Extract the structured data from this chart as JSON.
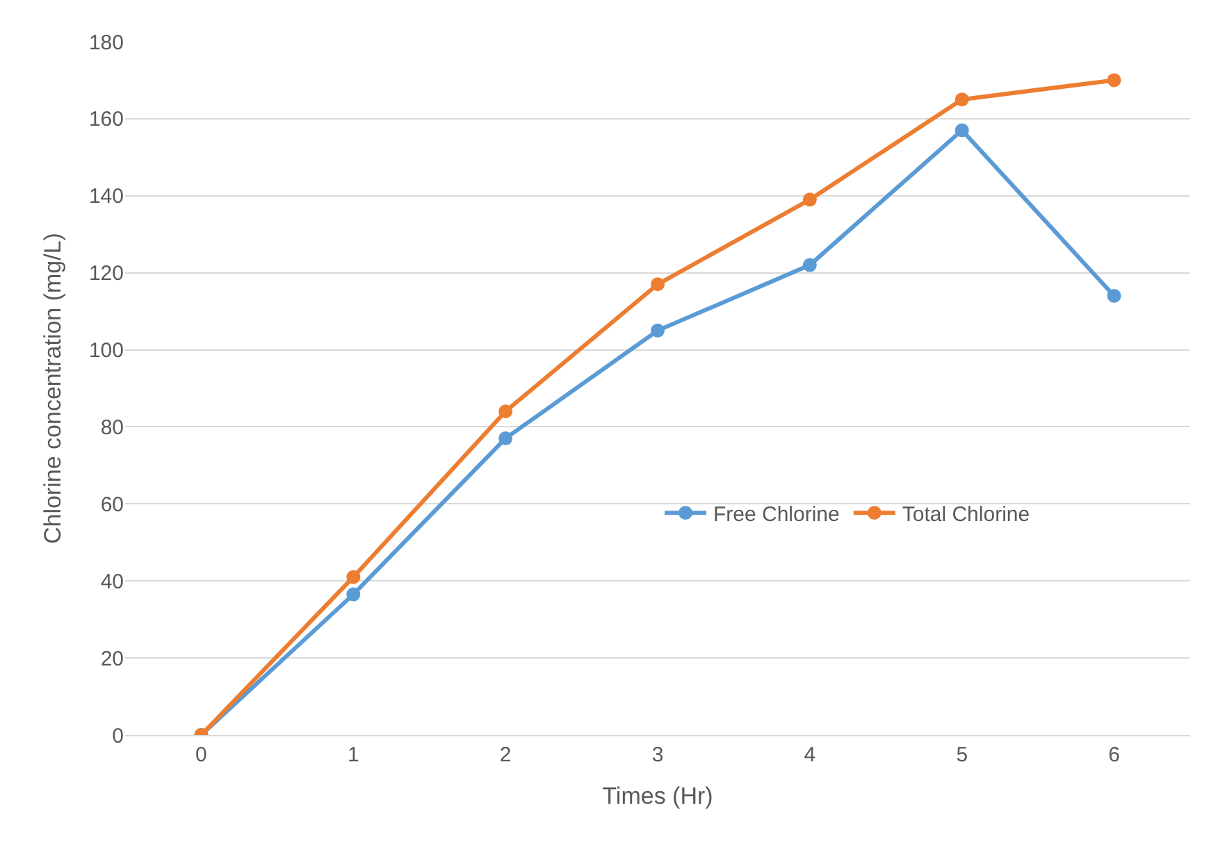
{
  "chart_data": {
    "type": "line",
    "xlabel": "Times (Hr)",
    "ylabel": "Chlorine concentration (mg/L)",
    "categories": [
      "0",
      "1",
      "2",
      "3",
      "4",
      "5",
      "6"
    ],
    "series": [
      {
        "name": "Free Chlorine",
        "color": "#5b9bd5",
        "values": [
          0,
          36.5,
          77,
          105,
          122,
          157,
          114
        ]
      },
      {
        "name": "Total Chlorine",
        "color": "#ed7d31",
        "values": [
          0,
          41,
          84,
          117,
          139,
          165,
          170
        ]
      }
    ],
    "ylim": [
      0,
      180
    ],
    "yticks": [
      0,
      20,
      40,
      60,
      80,
      100,
      120,
      140,
      160,
      180
    ],
    "grid": "y",
    "legend": "right",
    "marker": "circle",
    "line_style": "solid"
  }
}
